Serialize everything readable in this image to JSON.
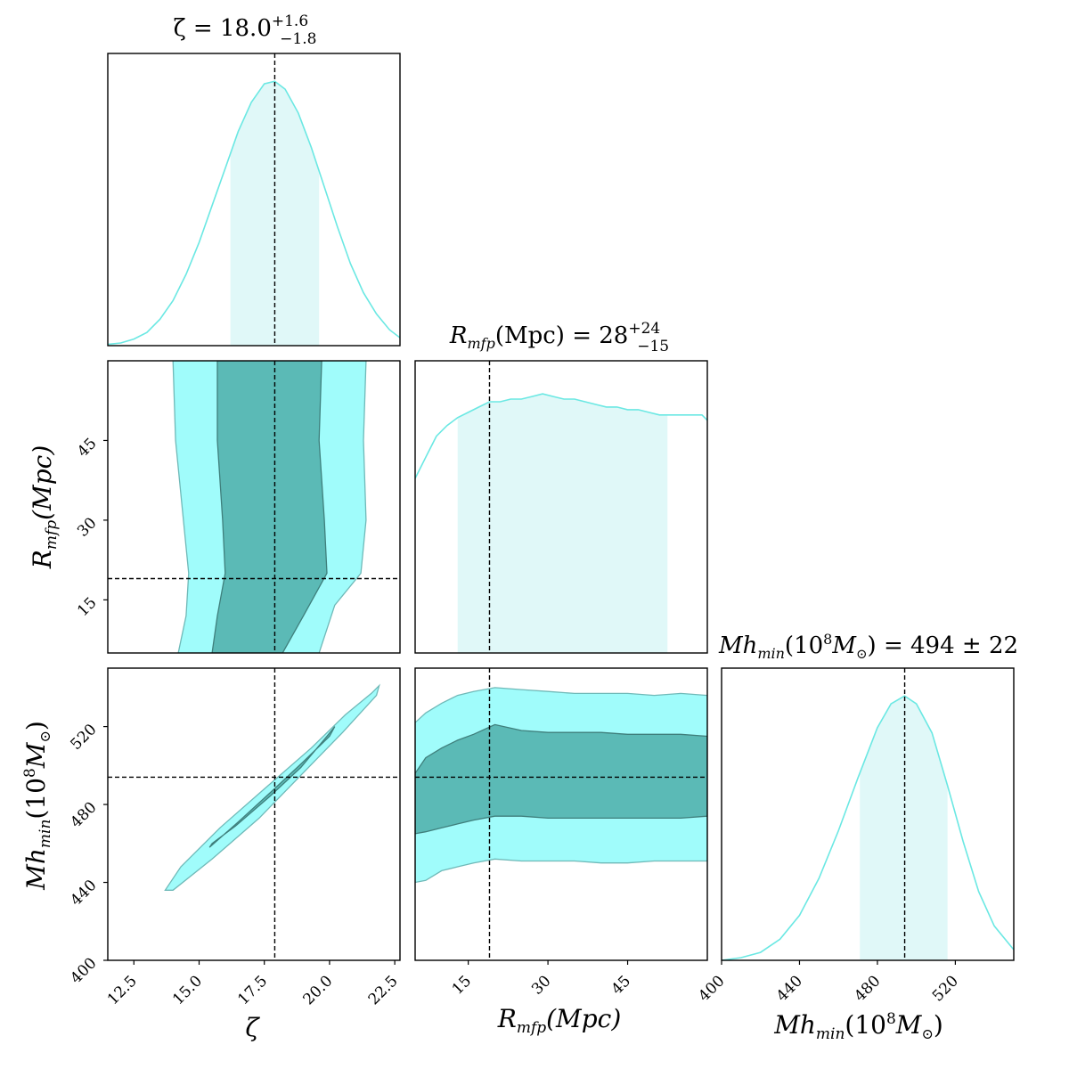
{
  "chart_data": {
    "type": "corner-plot",
    "colors": {
      "line": "#6be8e3",
      "fill_1d": "#e0f8f8",
      "contour_outer": "#a0fcfb",
      "contour_inner": "#5bbab6",
      "contour_edge_outer": "#6fb9b8",
      "contour_edge_inner": "#3f7f7c",
      "truth": "#000000"
    },
    "parameters": [
      {
        "key": "zeta",
        "label": "ζ",
        "title_lhs": "ζ = 18.0",
        "title_sup": "+1.6",
        "title_sub": "−1.8",
        "range": [
          11.5,
          22.7
        ],
        "ticks": [
          12.5,
          15.0,
          17.5,
          20.0,
          22.5
        ],
        "tick_labels": [
          "12.5",
          "15.0",
          "17.5",
          "20.0",
          "22.5"
        ],
        "truth": 17.9,
        "credible_interval": [
          16.2,
          19.6
        ]
      },
      {
        "key": "rmfp",
        "label": "R",
        "label_sub": "mfp",
        "label_rest": "(Mpc)",
        "title_lhs": "R",
        "title_lhs_sub": "mfp",
        "title_mid": "(Mpc) = 28",
        "title_sup": "+24",
        "title_sub": "−15",
        "range": [
          5,
          60
        ],
        "ticks": [
          15,
          30,
          45
        ],
        "tick_labels": [
          "15",
          "30",
          "45"
        ],
        "truth": 19.0,
        "credible_interval": [
          13,
          52.5
        ]
      },
      {
        "key": "mhmin",
        "label": "Mh",
        "label_sub": "min",
        "label_rest": "(10",
        "label_exp": "8",
        "label_tail": "M",
        "label_tail_sub": "⊙",
        "label_close": ")",
        "title_lhs": "Mh",
        "title_lhs_sub": "min",
        "title_mid": "(10",
        "title_exp": "8",
        "title_rest": "M",
        "title_rest_sub": "⊙",
        "title_end": ") = 494 ± 22",
        "range": [
          400,
          550
        ],
        "ticks": [
          400,
          440,
          480,
          520
        ],
        "tick_labels": [
          "400",
          "440",
          "480",
          "520"
        ],
        "truth": 494,
        "credible_interval": [
          471,
          516
        ]
      }
    ],
    "marginals": {
      "zeta": {
        "x": [
          11.5,
          12.0,
          12.5,
          13.0,
          13.5,
          14.0,
          14.5,
          15.0,
          15.5,
          16.0,
          16.5,
          17.0,
          17.5,
          17.9,
          18.3,
          18.8,
          19.3,
          19.8,
          20.3,
          20.8,
          21.3,
          21.8,
          22.3,
          22.7
        ],
        "y": [
          0.005,
          0.01,
          0.025,
          0.05,
          0.1,
          0.17,
          0.27,
          0.39,
          0.53,
          0.67,
          0.81,
          0.92,
          0.99,
          1.0,
          0.97,
          0.88,
          0.75,
          0.6,
          0.45,
          0.31,
          0.2,
          0.12,
          0.06,
          0.03
        ]
      },
      "rmfp": {
        "x": [
          5,
          7,
          9,
          11,
          13,
          15,
          17,
          19,
          21,
          23,
          25,
          27,
          29,
          31,
          33,
          35,
          37,
          39,
          41,
          43,
          45,
          47,
          49,
          51,
          53,
          55,
          57,
          59,
          60
        ],
        "y": [
          0.66,
          0.74,
          0.82,
          0.86,
          0.89,
          0.91,
          0.93,
          0.95,
          0.95,
          0.96,
          0.96,
          0.97,
          0.98,
          0.97,
          0.96,
          0.96,
          0.95,
          0.94,
          0.93,
          0.93,
          0.92,
          0.92,
          0.91,
          0.9,
          0.9,
          0.9,
          0.9,
          0.9,
          0.88
        ]
      },
      "mhmin": {
        "x": [
          400,
          410,
          420,
          430,
          440,
          450,
          460,
          470,
          480,
          487,
          494,
          500,
          508,
          516,
          524,
          532,
          540,
          550
        ],
        "y": [
          0.0,
          0.01,
          0.03,
          0.08,
          0.17,
          0.31,
          0.49,
          0.69,
          0.88,
          0.97,
          1.0,
          0.97,
          0.86,
          0.66,
          0.45,
          0.26,
          0.13,
          0.04
        ]
      }
    },
    "contours": {
      "zeta_rmfp": {
        "outer": [
          [
            14.2,
            5
          ],
          [
            14.5,
            12
          ],
          [
            14.6,
            20
          ],
          [
            14.4,
            30
          ],
          [
            14.1,
            45
          ],
          [
            14.0,
            60
          ],
          [
            21.4,
            60
          ],
          [
            21.3,
            45
          ],
          [
            21.4,
            30
          ],
          [
            21.2,
            20
          ],
          [
            20.2,
            14
          ],
          [
            19.6,
            5
          ]
        ],
        "inner": [
          [
            15.5,
            5
          ],
          [
            15.7,
            12
          ],
          [
            16.0,
            20
          ],
          [
            15.9,
            30
          ],
          [
            15.7,
            45
          ],
          [
            15.7,
            60
          ],
          [
            19.7,
            60
          ],
          [
            19.6,
            45
          ],
          [
            19.8,
            30
          ],
          [
            19.9,
            20
          ],
          [
            19.0,
            12
          ],
          [
            18.2,
            5
          ]
        ]
      },
      "zeta_mhmin": {
        "outer": [
          [
            13.7,
            436
          ],
          [
            14.3,
            448
          ],
          [
            15.8,
            468
          ],
          [
            17.5,
            488
          ],
          [
            19.3,
            509
          ],
          [
            20.6,
            526
          ],
          [
            21.6,
            537
          ],
          [
            21.9,
            541
          ],
          [
            21.8,
            536
          ],
          [
            20.5,
            517
          ],
          [
            18.9,
            495
          ],
          [
            17.3,
            473
          ],
          [
            15.5,
            452
          ],
          [
            14.0,
            436
          ]
        ],
        "inner": [
          [
            15.4,
            458
          ],
          [
            16.5,
            471
          ],
          [
            17.8,
            487
          ],
          [
            19.0,
            502
          ],
          [
            20.0,
            515
          ],
          [
            20.2,
            520
          ],
          [
            19.9,
            515
          ],
          [
            18.9,
            499
          ],
          [
            17.7,
            484
          ],
          [
            16.4,
            469
          ],
          [
            15.5,
            460
          ]
        ]
      },
      "rmfp_mhmin": {
        "outer_top": [
          [
            5,
            522
          ],
          [
            7,
            527
          ],
          [
            10,
            532
          ],
          [
            13,
            536
          ],
          [
            16,
            538
          ],
          [
            20,
            540
          ],
          [
            25,
            539
          ],
          [
            30,
            538
          ],
          [
            35,
            537
          ],
          [
            40,
            537
          ],
          [
            45,
            537
          ],
          [
            50,
            536
          ],
          [
            55,
            537
          ],
          [
            60,
            536
          ]
        ],
        "outer_bottom": [
          [
            5,
            440
          ],
          [
            7,
            441
          ],
          [
            10,
            446
          ],
          [
            13,
            448
          ],
          [
            16,
            450
          ],
          [
            20,
            452
          ],
          [
            25,
            451
          ],
          [
            30,
            451
          ],
          [
            35,
            451
          ],
          [
            40,
            450
          ],
          [
            45,
            450
          ],
          [
            50,
            451
          ],
          [
            55,
            451
          ],
          [
            60,
            451
          ]
        ],
        "inner_top": [
          [
            5,
            496
          ],
          [
            7,
            504
          ],
          [
            10,
            509
          ],
          [
            13,
            513
          ],
          [
            16,
            516
          ],
          [
            20,
            521
          ],
          [
            25,
            518
          ],
          [
            30,
            517
          ],
          [
            35,
            517
          ],
          [
            40,
            517
          ],
          [
            45,
            516
          ],
          [
            50,
            516
          ],
          [
            55,
            516
          ],
          [
            60,
            515
          ]
        ],
        "inner_bottom": [
          [
            5,
            465
          ],
          [
            7,
            466
          ],
          [
            10,
            468
          ],
          [
            13,
            470
          ],
          [
            16,
            472
          ],
          [
            20,
            474
          ],
          [
            25,
            474
          ],
          [
            30,
            473
          ],
          [
            35,
            473
          ],
          [
            40,
            473
          ],
          [
            45,
            473
          ],
          [
            50,
            473
          ],
          [
            55,
            473
          ],
          [
            60,
            474
          ]
        ]
      }
    }
  }
}
